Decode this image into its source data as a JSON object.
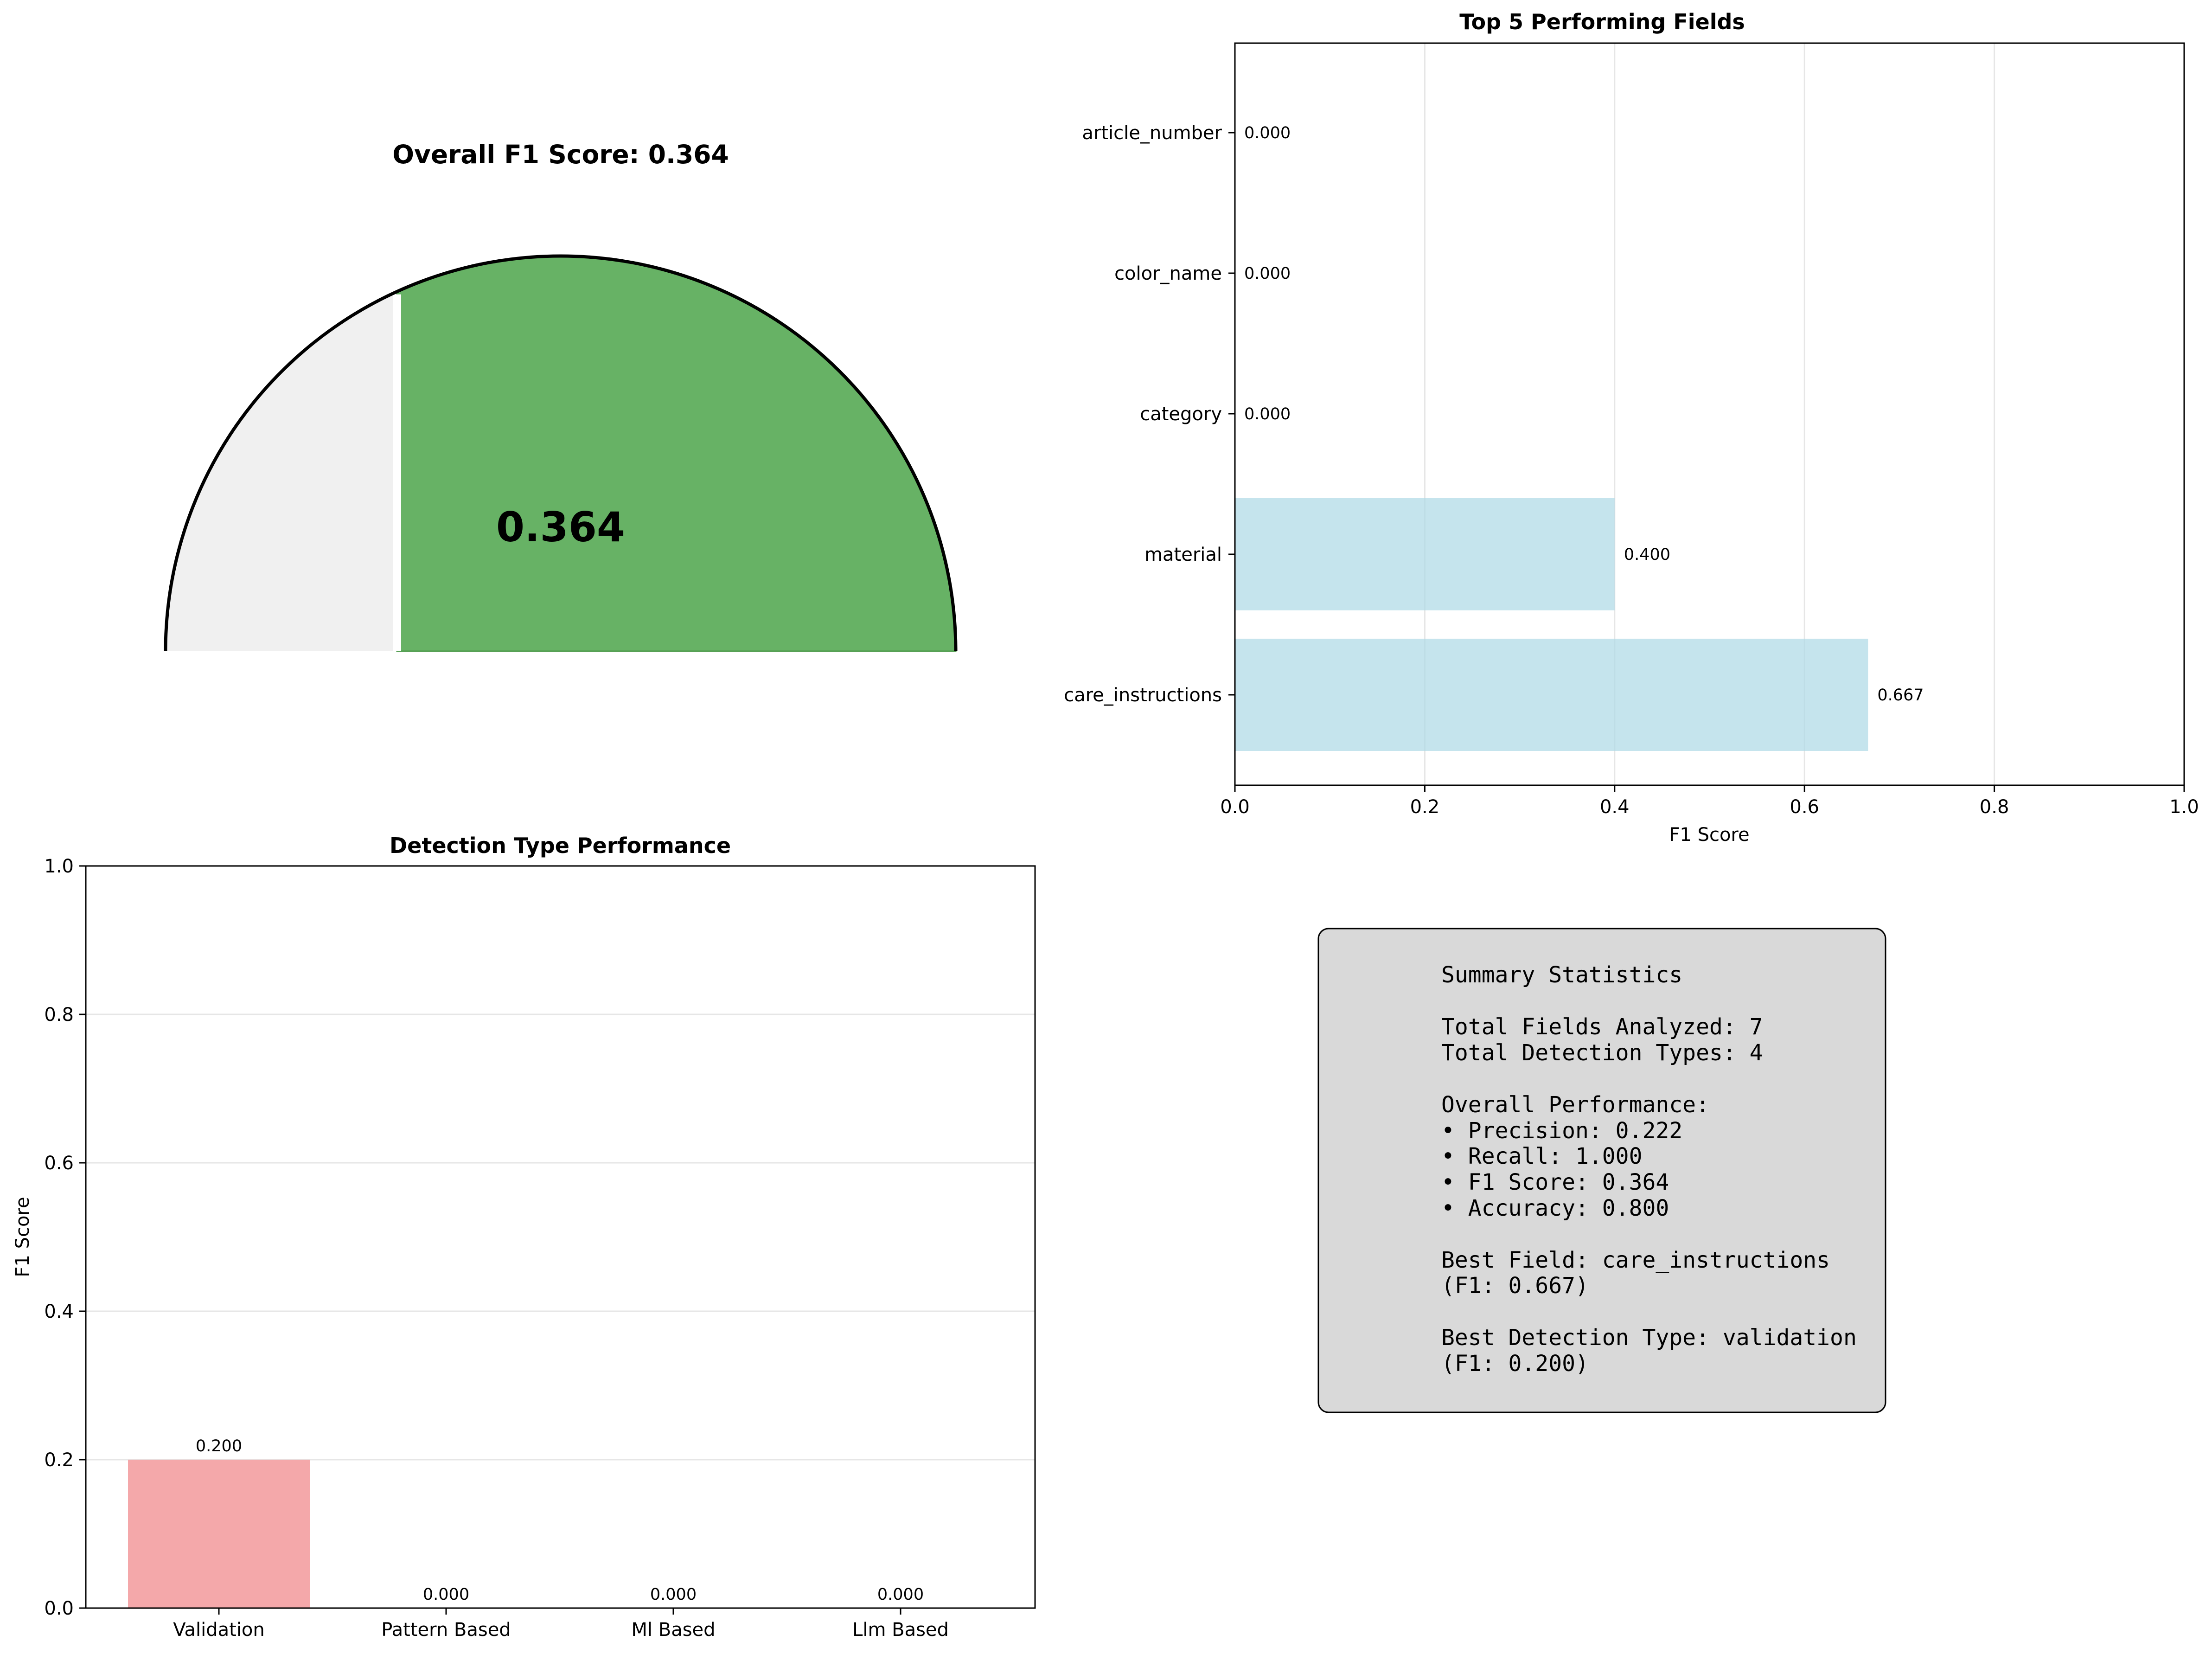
{
  "chart_data": [
    {
      "type": "gauge",
      "title": "Overall F1 Score: 0.364",
      "value": 0.364,
      "value_label": "0.364",
      "range": [
        0,
        1
      ],
      "colors": {
        "filled": "#67b265",
        "empty": "#f0f0f0",
        "outline": "#000000"
      }
    },
    {
      "type": "bar",
      "orientation": "horizontal",
      "title": "Top 5 Performing Fields",
      "categories": [
        "care_instructions",
        "material",
        "category",
        "color_name",
        "article_number"
      ],
      "values": [
        0.667,
        0.4,
        0.0,
        0.0,
        0.0
      ],
      "value_labels": [
        "0.667",
        "0.400",
        "0.000",
        "0.000",
        "0.000"
      ],
      "xlabel": "F1 Score",
      "ylabel": "",
      "xlim": [
        0,
        1
      ],
      "xticks": [
        "0.0",
        "0.2",
        "0.4",
        "0.6",
        "0.8",
        "1.0"
      ],
      "grid": "x",
      "colors": {
        "bar": "#add8e6"
      }
    },
    {
      "type": "bar",
      "title": "Detection Type Performance",
      "categories": [
        "Validation",
        "Pattern Based",
        "Ml Based",
        "Llm Based"
      ],
      "values": [
        0.2,
        0.0,
        0.0,
        0.0
      ],
      "value_labels": [
        "0.200",
        "0.000",
        "0.000",
        "0.000"
      ],
      "xlabel": "",
      "ylabel": "F1 Score",
      "ylim": [
        0,
        1
      ],
      "yticks": [
        "0.0",
        "0.2",
        "0.4",
        "0.6",
        "0.8",
        "1.0"
      ],
      "grid": "y",
      "colors": {
        "bar": "#f4a6a8"
      }
    }
  ],
  "summary": {
    "lines": [
      "Summary Statistics",
      "",
      "Total Fields Analyzed: 7",
      "Total Detection Types: 4",
      "",
      "Overall Performance:",
      "• Precision: 0.222",
      "• Recall: 1.000",
      "• F1 Score: 0.364",
      "• Accuracy: 0.800",
      "",
      "Best Field: care_instructions",
      "(F1: 0.667)",
      "",
      "Best Detection Type: validation",
      "(F1: 0.200)"
    ]
  }
}
